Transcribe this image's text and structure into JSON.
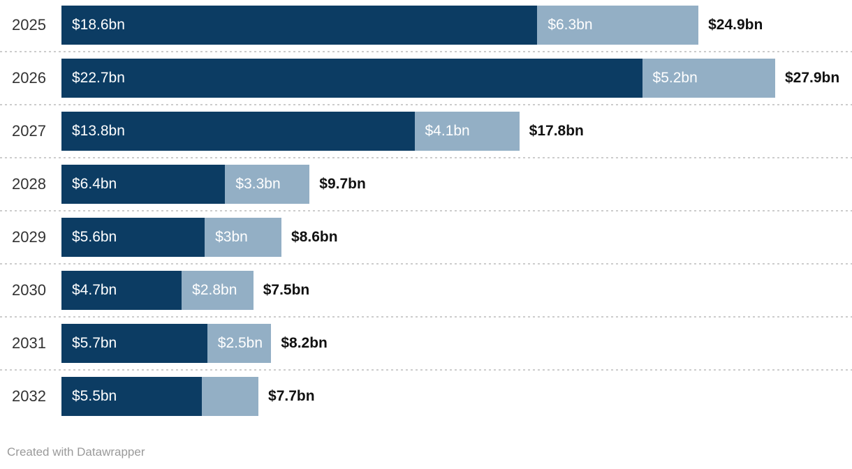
{
  "chart_data": {
    "type": "bar",
    "orientation": "horizontal",
    "stacked": true,
    "categories": [
      "2025",
      "2026",
      "2027",
      "2028",
      "2029",
      "2030",
      "2031",
      "2032"
    ],
    "series": [
      {
        "name": "primary-segment",
        "color": "#0c3c63",
        "values": [
          18.6,
          22.7,
          13.8,
          6.4,
          5.6,
          4.7,
          5.7,
          5.5
        ],
        "labels": [
          "$18.6bn",
          "$22.7bn",
          "$13.8bn",
          "$6.4bn",
          "$5.6bn",
          "$4.7bn",
          "$5.7bn",
          "$5.5bn"
        ]
      },
      {
        "name": "secondary-segment",
        "color": "#93afc5",
        "values": [
          6.3,
          5.2,
          4.1,
          3.3,
          3.0,
          2.8,
          2.5,
          2.2
        ],
        "labels": [
          "$6.3bn",
          "$5.2bn",
          "$4.1bn",
          "$3.3bn",
          "$3bn",
          "$2.8bn",
          "$2.5bn",
          ""
        ]
      }
    ],
    "totals": [
      "$24.9bn",
      "$27.9bn",
      "$17.8bn",
      "$9.7bn",
      "$8.6bn",
      "$7.5bn",
      "$8.2bn",
      "$7.7bn"
    ],
    "xlim": [
      0,
      27.9
    ],
    "grid": false,
    "legend": "none",
    "title": "",
    "xlabel": "",
    "ylabel": ""
  },
  "colors": {
    "primary": "#0c3c63",
    "secondary": "#93afc5",
    "separator": "#cccccc",
    "category_text": "#333333",
    "bar_label_text": "#ffffff",
    "total_text": "#111111",
    "credit_text": "#9a9a9a"
  },
  "footer": {
    "credit": "Created with Datawrapper"
  }
}
